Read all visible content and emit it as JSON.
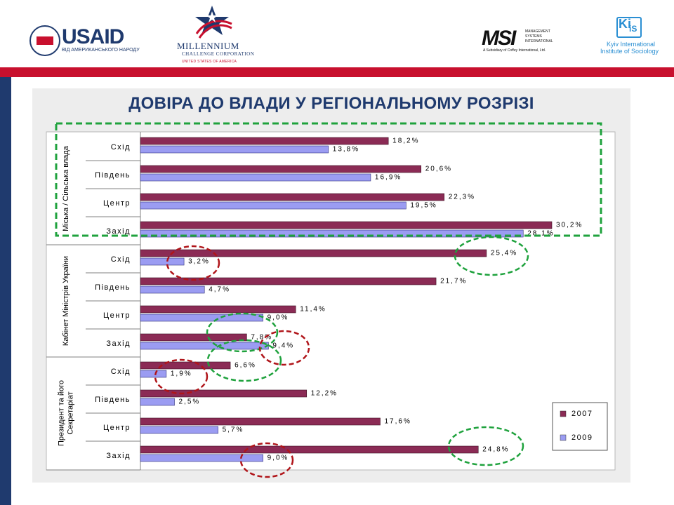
{
  "header": {
    "usaid_word": "USAID",
    "usaid_sub": "ВІД АМЕРИКАНСЬКОГО НАРОДУ",
    "mcc_title": "MILLENNIUM",
    "mcc_sub": "CHALLENGE CORPORATION",
    "mcc_sub2": "UNITED STATES OF AMERICA",
    "msi_word": "MSI",
    "msi_side": "MANAGEMENT SYSTEMS INTERNATIONAL",
    "msi_sub": "A Subsidiary of Coffey International, Ltd.",
    "kiis_k": "Ki",
    "kiis_is": "iS",
    "kiis_line1": "Kyiv International",
    "kiis_line2": "Institute of Sociology"
  },
  "colors": {
    "brand_red": "#c8102e",
    "brand_navy": "#1f3a6e",
    "series_2007": "#8b2b55",
    "series_2009": "#9b9cf2",
    "highlight_green": "#1fa23d",
    "highlight_red": "#b0151a"
  },
  "chart_data": {
    "type": "bar",
    "orientation": "horizontal",
    "title": "ДОВІРА ДО ВЛАДИ У РЕГІОНАЛЬНОМУ РОЗРІЗІ",
    "groups": [
      {
        "name": "Міська / Сільська влада",
        "categories": [
          "Схід",
          "Південь",
          "Центр",
          "Захід"
        ],
        "values_2007": [
          18.2,
          20.6,
          22.3,
          30.2
        ],
        "values_2009": [
          13.8,
          16.9,
          19.5,
          28.1
        ],
        "labels_2007": [
          "18,2%",
          "20,6%",
          "22,3%",
          "30,2%"
        ],
        "labels_2009": [
          "13,8%",
          "16,9%",
          "19,5%",
          "28,1%"
        ]
      },
      {
        "name": "Кабінет Міністрів України",
        "categories": [
          "Схід",
          "Південь",
          "Центр",
          "Захід"
        ],
        "values_2007": [
          25.4,
          21.7,
          11.4,
          7.8
        ],
        "values_2009": [
          3.2,
          4.7,
          9.0,
          9.4
        ],
        "labels_2007": [
          "25,4%",
          "21,7%",
          "11,4%",
          "7,8%"
        ],
        "labels_2009": [
          "3,2%",
          "4,7%",
          "9,0%",
          "9,4%"
        ]
      },
      {
        "name": "Президент та його Секретаріат",
        "categories": [
          "Схід",
          "Південь",
          "Центр",
          "Захід"
        ],
        "values_2007": [
          6.6,
          12.2,
          17.6,
          24.8
        ],
        "values_2009": [
          1.9,
          2.5,
          5.7,
          9.0
        ],
        "labels_2007": [
          "6,6%",
          "12,2%",
          "17,6%",
          "24,8%"
        ],
        "labels_2009": [
          "1,9%",
          "2,5%",
          "5,7%",
          "9,0%"
        ]
      }
    ],
    "series": [
      {
        "name": "2007",
        "color": "#8b2b55"
      },
      {
        "name": "2009",
        "color": "#9b9cf2"
      }
    ],
    "xlim": [
      0,
      32
    ],
    "legend": "bottom-right",
    "grid": false
  }
}
